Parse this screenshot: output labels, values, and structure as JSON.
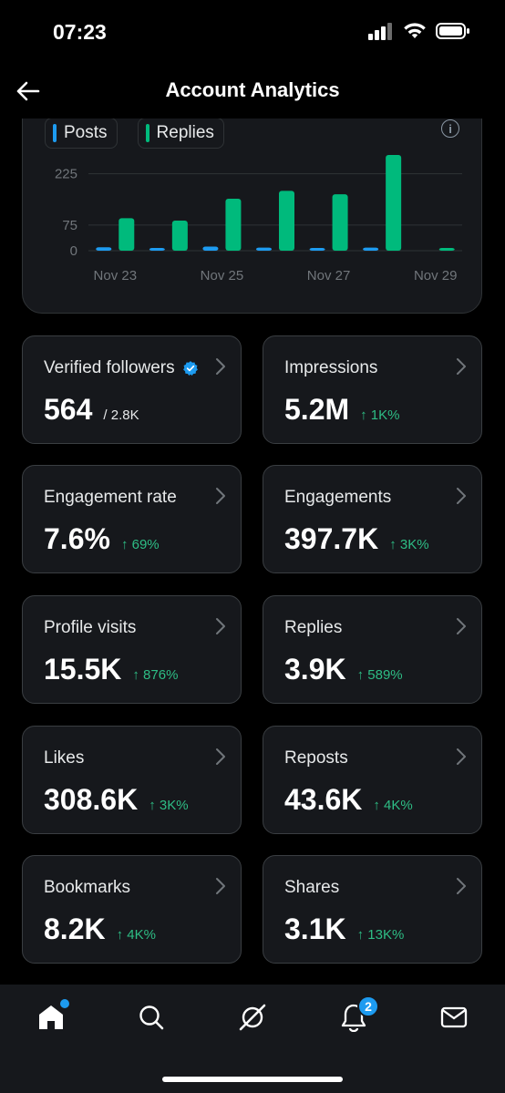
{
  "status": {
    "time": "07:23"
  },
  "header": {
    "title": "Account Analytics",
    "back_icon": "arrow-left-icon"
  },
  "chart": {
    "legend": [
      {
        "label": "Posts",
        "color": "#1d9bf0"
      },
      {
        "label": "Replies",
        "color": "#00ba7c"
      }
    ],
    "info_icon": "info-icon"
  },
  "chart_data": {
    "type": "bar",
    "y_ticks": [
      "225",
      "75",
      "0"
    ],
    "yticks_values": [
      225,
      75,
      0
    ],
    "x_tick_labels": [
      "Nov 23",
      "Nov 25",
      "Nov 27",
      "Nov 29"
    ],
    "x_tick_days": [
      23,
      25,
      27,
      29
    ],
    "categories": [
      "Nov 23",
      "Nov 24",
      "Nov 25",
      "Nov 26",
      "Nov 27",
      "Nov 28",
      "Nov 29"
    ],
    "series": [
      {
        "name": "Posts",
        "color": "#1d9bf0",
        "values": [
          10,
          8,
          12,
          9,
          8,
          9,
          0
        ]
      },
      {
        "name": "Replies",
        "color": "#00ba7c",
        "values": [
          95,
          88,
          152,
          175,
          165,
          280,
          8
        ]
      }
    ],
    "ylim": [
      0,
      280
    ],
    "grid": true
  },
  "stats": [
    {
      "id": "verified-followers",
      "label": "Verified followers",
      "value": "564",
      "sub": "/ 2.8K",
      "change": "",
      "verified": true
    },
    {
      "id": "impressions",
      "label": "Impressions",
      "value": "5.2M",
      "sub": "",
      "change": "↑ 1K%"
    },
    {
      "id": "engagement-rate",
      "label": "Engagement rate",
      "value": "7.6%",
      "sub": "",
      "change": "↑ 69%"
    },
    {
      "id": "engagements",
      "label": "Engagements",
      "value": "397.7K",
      "sub": "",
      "change": "↑ 3K%"
    },
    {
      "id": "profile-visits",
      "label": "Profile visits",
      "value": "15.5K",
      "sub": "",
      "change": "↑ 876%"
    },
    {
      "id": "replies",
      "label": "Replies",
      "value": "3.9K",
      "sub": "",
      "change": "↑ 589%"
    },
    {
      "id": "likes",
      "label": "Likes",
      "value": "308.6K",
      "sub": "",
      "change": "↑ 3K%"
    },
    {
      "id": "reposts",
      "label": "Reposts",
      "value": "43.6K",
      "sub": "",
      "change": "↑ 4K%"
    },
    {
      "id": "bookmarks",
      "label": "Bookmarks",
      "value": "8.2K",
      "sub": "",
      "change": "↑ 4K%"
    },
    {
      "id": "shares",
      "label": "Shares",
      "value": "3.1K",
      "sub": "",
      "change": "↑ 13K%"
    }
  ],
  "tabs": [
    {
      "id": "home",
      "icon": "home-icon",
      "badge": "dot"
    },
    {
      "id": "search",
      "icon": "search-icon",
      "badge": ""
    },
    {
      "id": "grok",
      "icon": "grok-icon",
      "badge": ""
    },
    {
      "id": "notifications",
      "icon": "bell-icon",
      "badge": "2"
    },
    {
      "id": "messages",
      "icon": "mail-icon",
      "badge": ""
    }
  ]
}
